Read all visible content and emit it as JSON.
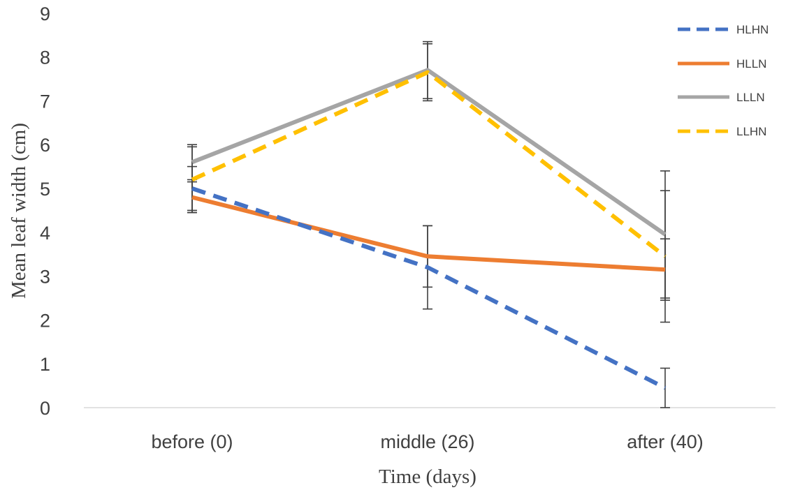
{
  "chart_data": {
    "type": "line",
    "title": "",
    "xlabel": "Time (days)",
    "ylabel": "Mean leaf width (cm)",
    "categories": [
      "before (0)",
      "middle (26)",
      "after (40)"
    ],
    "ylim": [
      0,
      9
    ],
    "yticks": [
      0,
      1,
      2,
      3,
      4,
      5,
      6,
      7,
      8,
      9
    ],
    "grid": false,
    "legend": "top-right",
    "series": [
      {
        "name": "HLHN",
        "values": [
          5.0,
          3.2,
          0.45
        ],
        "errors": [
          0.5,
          0.95,
          0.45
        ],
        "color": "#4472C4",
        "dashed": true
      },
      {
        "name": "HLLN",
        "values": [
          4.8,
          3.45,
          3.15
        ],
        "errors": [
          0.35,
          0.7,
          0.7
        ],
        "color": "#ED7D31",
        "dashed": false
      },
      {
        "name": "LLLN",
        "values": [
          5.6,
          7.7,
          3.95
        ],
        "errors": [
          0.4,
          0.65,
          1.45
        ],
        "color": "#A5A5A5",
        "dashed": false
      },
      {
        "name": "LLHN",
        "values": [
          5.2,
          7.65,
          3.45
        ],
        "errors": [
          0.75,
          0.65,
          1.5
        ],
        "color": "#FFC000",
        "dashed": true
      }
    ]
  }
}
